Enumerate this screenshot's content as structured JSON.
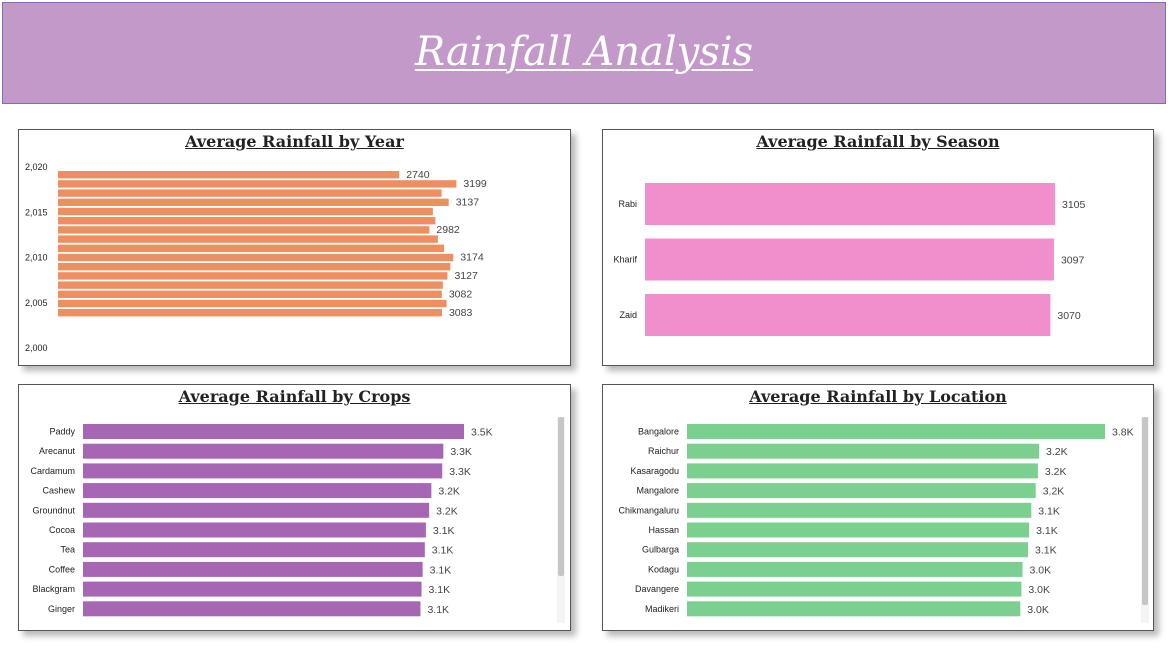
{
  "header": {
    "title": "Rainfall Analysis"
  },
  "chart_data": [
    {
      "id": "year",
      "type": "bar",
      "orientation": "horizontal",
      "title": "Average Rainfall by Year",
      "color": "#ed8f61",
      "x": [
        2020,
        2019,
        2018,
        2017,
        2016,
        2015,
        2014,
        2013,
        2012,
        2011,
        2010,
        2009,
        2008,
        2007,
        2006,
        2005,
        2004
      ],
      "values": [
        2740,
        3199,
        3080,
        3137,
        3010,
        3030,
        2982,
        3050,
        3100,
        3174,
        3150,
        3127,
        3090,
        3082,
        3120,
        3083,
        null
      ],
      "data_labels": {
        "2020": "2740",
        "2019": "3199",
        "2017": "3137",
        "2014": "2982",
        "2011": "3174",
        "2009": "3127",
        "2007": "3082",
        "2005": "3083"
      },
      "y_ticks": [
        "2,020",
        "2,015",
        "2,010",
        "2,005",
        "2,000"
      ],
      "ylim": [
        2000,
        2020
      ],
      "xlim": [
        0,
        3300
      ]
    },
    {
      "id": "season",
      "type": "bar",
      "orientation": "horizontal",
      "title": "Average Rainfall by Season",
      "color": "#f08fcc",
      "categories": [
        "Rabi",
        "Kharif",
        "Zaid"
      ],
      "values": [
        3105,
        3097,
        3070
      ],
      "data_labels": [
        "3105",
        "3097",
        "3070"
      ],
      "xlim": [
        0,
        3105
      ]
    },
    {
      "id": "crops",
      "type": "bar",
      "orientation": "horizontal",
      "title": "Average Rainfall by Crops",
      "color": "#a666b3",
      "categories": [
        "Paddy",
        "Arecanut",
        "Cardamum",
        "Cashew",
        "Groundnut",
        "Cocoa",
        "Tea",
        "Coffee",
        "Blackgram",
        "Ginger"
      ],
      "values": [
        3500,
        3310,
        3300,
        3200,
        3180,
        3150,
        3140,
        3120,
        3110,
        3100
      ],
      "data_labels": [
        "3.5K",
        "3.3K",
        "3.3K",
        "3.2K",
        "3.2K",
        "3.1K",
        "3.1K",
        "3.1K",
        "3.1K",
        "3.1K"
      ],
      "xlim": [
        0,
        3500
      ]
    },
    {
      "id": "location",
      "type": "bar",
      "orientation": "horizontal",
      "title": "Average Rainfall by Location",
      "color": "#7bcf8f",
      "categories": [
        "Bangalore",
        "Raichur",
        "Kasaragodu",
        "Mangalore",
        "Chikmangaluru",
        "Hassan",
        "Gulbarga",
        "Kodagu",
        "Davangere",
        "Madikeri"
      ],
      "values": [
        3800,
        3200,
        3190,
        3170,
        3130,
        3110,
        3100,
        3050,
        3040,
        3030
      ],
      "data_labels": [
        "3.8K",
        "3.2K",
        "3.2K",
        "3.2K",
        "3.1K",
        "3.1K",
        "3.1K",
        "3.0K",
        "3.0K",
        "3.0K"
      ],
      "xlim": [
        0,
        3800
      ]
    }
  ]
}
